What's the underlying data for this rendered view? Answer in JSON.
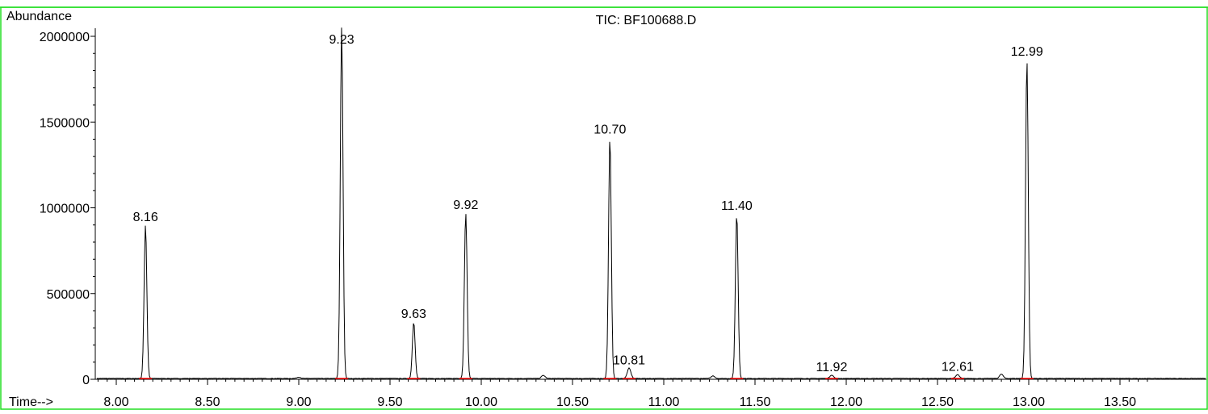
{
  "chart_data": {
    "type": "line",
    "title": "TIC: BF100688.D",
    "ylabel": "Abundance",
    "xlabel": "Time-->",
    "xlim": [
      7.8,
      13.7
    ],
    "ylim": [
      0,
      2050000
    ],
    "x_ticks": [
      8.0,
      8.5,
      9.0,
      9.5,
      10.0,
      10.5,
      11.0,
      11.5,
      12.0,
      12.5,
      13.0,
      13.5
    ],
    "x_tick_labels": [
      "8.00",
      "8.50",
      "9.00",
      "9.50",
      "10.00",
      "10.50",
      "11.00",
      "11.50",
      "12.00",
      "12.50",
      "13.00",
      "13.50"
    ],
    "y_ticks": [
      0,
      500000,
      1000000,
      1500000,
      2000000
    ],
    "y_tick_labels": [
      "0",
      "500000",
      "1000000",
      "1500000",
      "2000000"
    ],
    "grid": false,
    "baseline": 5000,
    "peaks": [
      {
        "label": "8.16",
        "rt": 8.16,
        "height": 895000
      },
      {
        "label": "9.23",
        "rt": 9.235,
        "height": 2050000
      },
      {
        "label": "9.63",
        "rt": 9.63,
        "height": 330000
      },
      {
        "label": "9.92",
        "rt": 9.915,
        "height": 965000
      },
      {
        "label": "10.70",
        "rt": 10.705,
        "height": 1405000
      },
      {
        "label": "10.81",
        "rt": 10.81,
        "height": 60000
      },
      {
        "label": "11.40",
        "rt": 11.4,
        "height": 960000
      },
      {
        "label": "11.92",
        "rt": 11.92,
        "height": 20000
      },
      {
        "label": "12.61",
        "rt": 12.61,
        "height": 22000
      },
      {
        "label": "12.99",
        "rt": 12.99,
        "height": 1860000
      }
    ],
    "minor_peaks": [
      {
        "rt": 9.0,
        "height": 8000
      },
      {
        "rt": 10.34,
        "height": 18000
      },
      {
        "rt": 11.27,
        "height": 15000
      },
      {
        "rt": 12.85,
        "height": 25000
      }
    ],
    "colors": {
      "trace": "#000000",
      "frame": "#22dd22",
      "baseline_marks": "#ff0000"
    }
  }
}
